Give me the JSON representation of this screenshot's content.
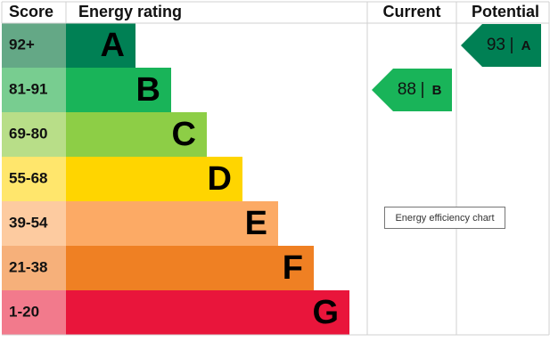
{
  "chart_data": {
    "type": "epc",
    "headers": {
      "score": "Score",
      "rating": "Energy rating",
      "current": "Current",
      "potential": "Potential"
    },
    "bands": [
      {
        "score": "92+",
        "letter": "A",
        "color": "#008054",
        "score_color": "#64a886"
      },
      {
        "score": "81-91",
        "letter": "B",
        "color": "#19b459",
        "score_color": "#78cd90"
      },
      {
        "score": "69-80",
        "letter": "C",
        "color": "#8dce46",
        "score_color": "#b8de88"
      },
      {
        "score": "55-68",
        "letter": "D",
        "color": "#ffd500",
        "score_color": "#ffe66c"
      },
      {
        "score": "39-54",
        "letter": "E",
        "color": "#fcaa65",
        "score_color": "#fdcba0"
      },
      {
        "score": "21-38",
        "letter": "F",
        "color": "#ef8023",
        "score_color": "#f6b07a"
      },
      {
        "score": "1-20",
        "letter": "G",
        "color": "#e9153b",
        "score_color": "#f27a8c"
      }
    ],
    "current": {
      "value": 88,
      "rating": "B",
      "color": "#19b459"
    },
    "potential": {
      "value": 93,
      "rating": "A",
      "color": "#008054"
    },
    "tooltip": "Energy efficiency chart"
  }
}
